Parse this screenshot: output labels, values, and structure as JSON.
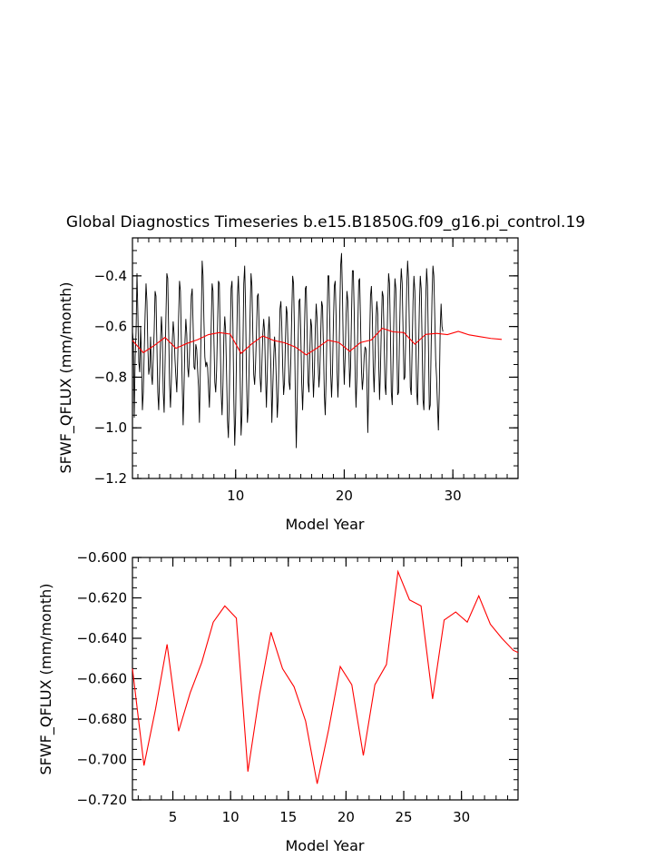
{
  "chart_data": [
    {
      "type": "line",
      "title": "Global Diagnostics Timeseries b.e15.B1850G.f09_g16.pi_control.19",
      "xlabel": "Model Year",
      "ylabel": "SFWF_QFLUX (mm/month)",
      "xlim": [
        0.5,
        36.0
      ],
      "ylim": [
        -1.2,
        -0.25
      ],
      "xticks": [
        10,
        20,
        30
      ],
      "xtick_labels": [
        "10",
        "20",
        "30"
      ],
      "yticks": [
        -1.2,
        -1.0,
        -0.8,
        -0.6,
        -0.4
      ],
      "ytick_labels": [
        "−1.2",
        "−1.0",
        "−0.8",
        "−0.6",
        "−0.4"
      ],
      "grid": false,
      "series": [
        {
          "color": "#000000",
          "x_start": 0.5,
          "x_step": 0.0833333,
          "values": [
            -0.62,
            -0.66,
            -0.96,
            -0.72,
            -0.62,
            -0.39,
            -0.55,
            -0.74,
            -0.78,
            -0.6,
            -0.72,
            -0.93,
            -0.86,
            -0.7,
            -0.55,
            -0.43,
            -0.5,
            -0.68,
            -0.79,
            -0.76,
            -0.64,
            -0.79,
            -0.83,
            -0.72,
            -0.62,
            -0.46,
            -0.48,
            -0.67,
            -0.86,
            -0.93,
            -0.79,
            -0.66,
            -0.56,
            -0.64,
            -0.86,
            -0.94,
            -0.75,
            -0.56,
            -0.39,
            -0.41,
            -0.62,
            -0.83,
            -0.92,
            -0.81,
            -0.66,
            -0.58,
            -0.63,
            -0.73,
            -0.8,
            -0.86,
            -0.73,
            -0.56,
            -0.42,
            -0.46,
            -0.65,
            -0.83,
            -0.99,
            -0.84,
            -0.66,
            -0.57,
            -0.63,
            -0.76,
            -0.8,
            -0.71,
            -0.6,
            -0.48,
            -0.45,
            -0.59,
            -0.76,
            -0.77,
            -0.67,
            -0.69,
            -0.77,
            -0.84,
            -0.98,
            -0.77,
            -0.58,
            -0.34,
            -0.4,
            -0.58,
            -0.72,
            -0.76,
            -0.74,
            -0.76,
            -0.84,
            -0.92,
            -0.79,
            -0.6,
            -0.43,
            -0.46,
            -0.65,
            -0.82,
            -0.86,
            -0.77,
            -0.6,
            -0.42,
            -0.43,
            -0.66,
            -0.86,
            -0.95,
            -0.83,
            -0.64,
            -0.56,
            -0.62,
            -0.79,
            -0.97,
            -1.04,
            -0.88,
            -0.65,
            -0.45,
            -0.42,
            -0.59,
            -0.89,
            -1.07,
            -0.95,
            -0.7,
            -0.48,
            -0.4,
            -0.52,
            -0.8,
            -1.03,
            -0.95,
            -0.7,
            -0.43,
            -0.36,
            -0.53,
            -0.8,
            -0.98,
            -0.92,
            -0.74,
            -0.55,
            -0.39,
            -0.44,
            -0.63,
            -0.79,
            -0.83,
            -0.75,
            -0.63,
            -0.48,
            -0.47,
            -0.61,
            -0.8,
            -0.86,
            -0.75,
            -0.63,
            -0.57,
            -0.62,
            -0.79,
            -0.92,
            -0.78,
            -0.63,
            -0.56,
            -0.65,
            -0.77,
            -0.98,
            -0.85,
            -0.73,
            -0.64,
            -0.7,
            -0.82,
            -0.96,
            -0.88,
            -0.71,
            -0.53,
            -0.5,
            -0.6,
            -0.76,
            -0.87,
            -0.82,
            -0.66,
            -0.52,
            -0.55,
            -0.7,
            -0.82,
            -0.85,
            -0.73,
            -0.55,
            -0.4,
            -0.43,
            -0.62,
            -0.88,
            -1.08,
            -0.9,
            -0.67,
            -0.5,
            -0.49,
            -0.63,
            -0.82,
            -0.93,
            -0.81,
            -0.62,
            -0.45,
            -0.44,
            -0.62,
            -0.82,
            -0.86,
            -0.7,
            -0.57,
            -0.6,
            -0.76,
            -0.88,
            -0.78,
            -0.61,
            -0.51,
            -0.57,
            -0.73,
            -0.84,
            -0.78,
            -0.63,
            -0.5,
            -0.52,
            -0.68,
            -0.87,
            -0.95,
            -0.8,
            -0.59,
            -0.4,
            -0.4,
            -0.58,
            -0.78,
            -0.88,
            -0.78,
            -0.59,
            -0.44,
            -0.42,
            -0.56,
            -0.77,
            -0.88,
            -0.77,
            -0.56,
            -0.36,
            -0.31,
            -0.47,
            -0.7,
            -0.83,
            -0.72,
            -0.56,
            -0.46,
            -0.5,
            -0.67,
            -0.84,
            -0.76,
            -0.56,
            -0.38,
            -0.38,
            -0.54,
            -0.78,
            -0.92,
            -0.8,
            -0.6,
            -0.42,
            -0.41,
            -0.58,
            -0.77,
            -0.85,
            -0.8,
            -0.72,
            -0.68,
            -0.69,
            -0.8,
            -1.02,
            -0.85,
            -0.66,
            -0.48,
            -0.44,
            -0.55,
            -0.76,
            -0.86,
            -0.73,
            -0.58,
            -0.5,
            -0.55,
            -0.73,
            -0.89,
            -0.77,
            -0.6,
            -0.46,
            -0.48,
            -0.64,
            -0.83,
            -0.87,
            -0.71,
            -0.52,
            -0.39,
            -0.43,
            -0.62,
            -0.86,
            -0.91,
            -0.73,
            -0.53,
            -0.41,
            -0.45,
            -0.66,
            -0.87,
            -0.86,
            -0.65,
            -0.46,
            -0.37,
            -0.43,
            -0.62,
            -0.81,
            -0.8,
            -0.63,
            -0.45,
            -0.34,
            -0.41,
            -0.62,
            -0.84,
            -0.87,
            -0.69,
            -0.5,
            -0.4,
            -0.46,
            -0.65,
            -0.86,
            -0.91,
            -0.72,
            -0.52,
            -0.4,
            -0.45,
            -0.66,
            -0.89,
            -0.93,
            -0.72,
            -0.5,
            -0.37,
            -0.44,
            -0.67,
            -0.93,
            -0.91,
            -0.68,
            -0.48,
            -0.36,
            -0.4,
            -0.56,
            -0.73,
            -0.8,
            -0.91,
            -1.01,
            -0.86,
            -0.61,
            -0.51,
            -0.6,
            -0.62
          ]
        },
        {
          "color": "#ff0000",
          "x": [
            0.5,
            1.5,
            2.5,
            3.5,
            4.5,
            5.5,
            6.5,
            7.5,
            8.5,
            9.5,
            10.5,
            11.5,
            12.5,
            13.5,
            14.5,
            15.5,
            16.5,
            17.5,
            18.5,
            19.5,
            20.5,
            21.5,
            22.5,
            23.5,
            24.5,
            25.5,
            26.5,
            27.5,
            28.5,
            29.5,
            30.5,
            31.5,
            32.5,
            33.5,
            34.5
          ],
          "values": [
            -0.655,
            -0.703,
            -0.675,
            -0.643,
            -0.686,
            -0.667,
            -0.652,
            -0.632,
            -0.624,
            -0.63,
            -0.706,
            -0.668,
            -0.637,
            -0.655,
            -0.664,
            -0.681,
            -0.712,
            -0.685,
            -0.654,
            -0.663,
            -0.698,
            -0.663,
            -0.653,
            -0.607,
            -0.621,
            -0.624,
            -0.67,
            -0.631,
            -0.627,
            -0.632,
            -0.619,
            -0.633,
            -0.64,
            -0.647,
            -0.651
          ]
        }
      ]
    },
    {
      "type": "line",
      "xlabel": "Model Year",
      "ylabel": "SFWF_QFLUX (mm/month)",
      "xlim": [
        1.5,
        34.9
      ],
      "ylim": [
        -0.72,
        -0.6
      ],
      "xticks": [
        5,
        10,
        15,
        20,
        25,
        30
      ],
      "xtick_labels": [
        "5",
        "10",
        "15",
        "20",
        "25",
        "30"
      ],
      "yticks": [
        -0.72,
        -0.7,
        -0.68,
        -0.66,
        -0.64,
        -0.62,
        -0.6
      ],
      "ytick_labels": [
        "−0.720",
        "−0.700",
        "−0.680",
        "−0.660",
        "−0.640",
        "−0.620",
        "−0.600"
      ],
      "grid": false,
      "series": [
        {
          "color": "#ff0000",
          "x": [
            1.5,
            2.5,
            3.5,
            4.5,
            5.5,
            6.5,
            7.5,
            8.5,
            9.5,
            10.5,
            11.5,
            12.5,
            13.5,
            14.5,
            15.5,
            16.5,
            17.5,
            18.5,
            19.5,
            20.5,
            21.5,
            22.5,
            23.5,
            24.5,
            25.5,
            26.5,
            27.5,
            28.5,
            29.5,
            30.5,
            31.5,
            32.5,
            33.5,
            34.5,
            34.9
          ],
          "values": [
            -0.655,
            -0.703,
            -0.675,
            -0.643,
            -0.686,
            -0.667,
            -0.652,
            -0.632,
            -0.624,
            -0.63,
            -0.706,
            -0.668,
            -0.637,
            -0.655,
            -0.664,
            -0.681,
            -0.712,
            -0.685,
            -0.654,
            -0.663,
            -0.698,
            -0.663,
            -0.653,
            -0.607,
            -0.621,
            -0.624,
            -0.67,
            -0.631,
            -0.627,
            -0.632,
            -0.619,
            -0.633,
            -0.64,
            -0.646,
            -0.647
          ]
        }
      ]
    }
  ]
}
